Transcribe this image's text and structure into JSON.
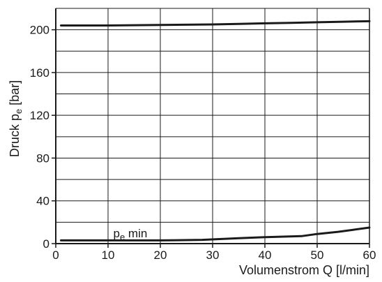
{
  "chart_data": {
    "type": "line",
    "title": "",
    "xlabel": "Volumenstrom Q [l/min]",
    "ylabel": {
      "main": "Druck p",
      "sub": "e",
      "unit": " [bar]"
    },
    "xlim": [
      0,
      60
    ],
    "ylim": [
      0,
      220
    ],
    "x_ticks": [
      0,
      10,
      20,
      30,
      40,
      50,
      60
    ],
    "y_ticks": [
      0,
      40,
      80,
      120,
      160,
      200
    ],
    "grid": true,
    "grid_x_step": 10,
    "grid_y_step": 20,
    "series": [
      {
        "x": [
          1,
          10,
          20,
          30,
          35,
          40,
          45,
          50,
          55,
          60
        ],
        "values": [
          204,
          204,
          204.5,
          205,
          205.5,
          206,
          206.5,
          207,
          207.5,
          208
        ]
      },
      {
        "x": [
          1,
          10,
          20,
          28,
          35,
          40,
          47,
          50,
          54,
          57,
          60
        ],
        "values": [
          3,
          3,
          3,
          3.5,
          5,
          6,
          7,
          9,
          11,
          13,
          15
        ]
      }
    ],
    "annotations": [
      {
        "main": "p",
        "sub": "e",
        "rest": " min",
        "x": 11,
        "y": 6
      }
    ],
    "line_color": "#1a1a1a",
    "grid_color": "#1a1a1a"
  }
}
